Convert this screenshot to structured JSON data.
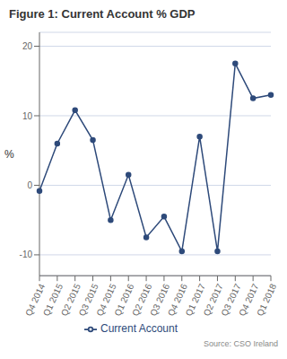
{
  "chart_data": {
    "type": "line",
    "title": "Figure 1: Current Account % GDP",
    "y_label": "%",
    "annotations": [
      "Source: CSO Ireland"
    ],
    "categories": [
      "Q4 2014",
      "Q1 2015",
      "Q2 2015",
      "Q3 2015",
      "Q4 2015",
      "Q1 2016",
      "Q2 2016",
      "Q3 2016",
      "Q4 2016",
      "Q1 2017",
      "Q2 2017",
      "Q3 2017",
      "Q4 2017",
      "Q1 2018"
    ],
    "series": [
      {
        "name": "Current Account",
        "color": "#2e4a7a",
        "marker": "circle",
        "values": [
          -0.8,
          6.0,
          10.8,
          6.5,
          -5.0,
          1.5,
          -7.5,
          -4.5,
          -9.5,
          7.0,
          -9.5,
          17.5,
          12.5,
          13.0
        ]
      }
    ],
    "ylim": [
      -13,
      22
    ],
    "yticks": [
      -10,
      0,
      10,
      20
    ],
    "grid": "y",
    "legend": "bottom"
  }
}
